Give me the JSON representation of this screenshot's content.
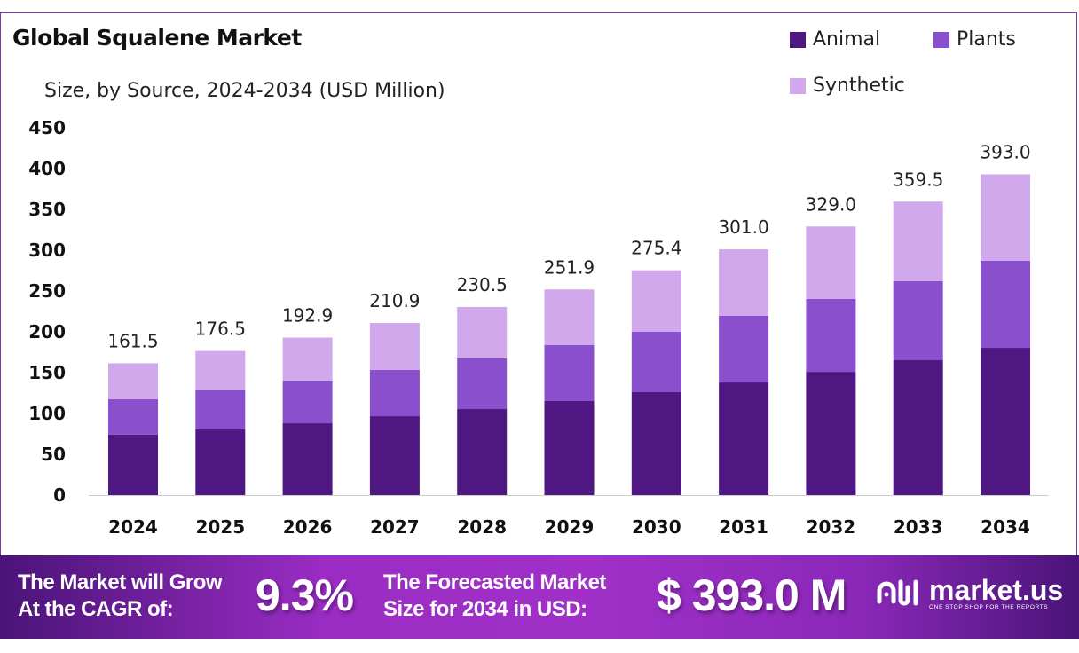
{
  "chart_data": {
    "type": "bar",
    "stacked": true,
    "title": "Global Squalene Market",
    "subtitle": "Size, by Source, 2024-2034 (USD Million)",
    "xlabel": "",
    "ylabel": "",
    "ylim": [
      0,
      450
    ],
    "yticks": [
      "0",
      "50",
      "100",
      "150",
      "200",
      "250",
      "300",
      "350",
      "400",
      "450"
    ],
    "grid": false,
    "legend_position": "top-right",
    "categories": [
      "2024",
      "2025",
      "2026",
      "2027",
      "2028",
      "2029",
      "2030",
      "2031",
      "2032",
      "2033",
      "2034"
    ],
    "series": [
      {
        "name": "Animal",
        "color": "#4e1782",
        "values": [
          74.0,
          80.4,
          88.0,
          96.7,
          105.4,
          115.2,
          126.1,
          138.0,
          151.0,
          165.2,
          180.4
        ]
      },
      {
        "name": "Plants",
        "color": "#8a4fcc",
        "values": [
          43.5,
          47.9,
          52.2,
          56.6,
          62.0,
          68.5,
          73.9,
          81.6,
          89.2,
          96.8,
          106.6
        ]
      },
      {
        "name": "Synthetic",
        "color": "#d2a8ec",
        "values": [
          44.0,
          48.2,
          52.7,
          57.6,
          63.1,
          68.2,
          75.4,
          81.4,
          88.8,
          97.5,
          106.0
        ]
      }
    ],
    "totals": [
      "161.5",
      "176.5",
      "192.9",
      "210.9",
      "230.5",
      "251.9",
      "275.4",
      "301.0",
      "329.0",
      "359.5",
      "393.0"
    ]
  },
  "banner": {
    "cagr_label_line1": "The Market will Grow",
    "cagr_label_line2": "At the CAGR of:",
    "cagr_value": "9.3%",
    "forecast_label_line1": "The Forecasted Market",
    "forecast_label_line2": "Size for 2034 in USD:",
    "forecast_value": "$ 393.0 M",
    "logo_name": "market.us",
    "logo_tagline": "ONE STOP SHOP FOR THE REPORTS"
  }
}
